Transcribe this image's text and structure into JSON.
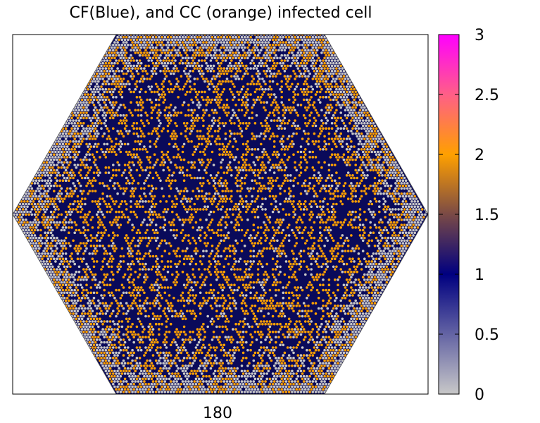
{
  "chart_data": {
    "type": "heatmap",
    "title": "CF(Blue), and CC (orange) infected cell",
    "x_tick_labels": [
      "180"
    ],
    "grid_shape": "hexagonal lattice",
    "colorbar": {
      "range": [
        0,
        3
      ],
      "tick_labels": [
        "0",
        "0.5",
        "1",
        "1.5",
        "2",
        "2.5",
        "3"
      ],
      "colormap": [
        {
          "value": 0,
          "color": "#c8c8c8"
        },
        {
          "value": 1,
          "color": "#000080"
        },
        {
          "value": 1.5,
          "color": "#7a4a46"
        },
        {
          "value": 2,
          "color": "#ffa000"
        },
        {
          "value": 2.5,
          "color": "#ff5f87"
        },
        {
          "value": 3,
          "color": "#ff00ff"
        }
      ]
    },
    "value_distribution": [
      {
        "value": 0,
        "share": 0.15
      },
      {
        "value": 1,
        "share": 0.55
      },
      {
        "value": 2,
        "share": 0.3
      }
    ]
  }
}
